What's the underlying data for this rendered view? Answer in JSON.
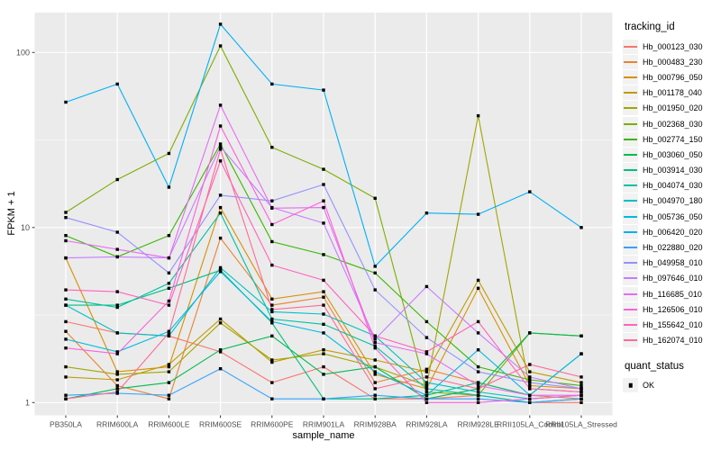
{
  "chart_data": {
    "type": "line",
    "title": "",
    "xlabel": "sample_name",
    "ylabel": "FPKM + 1",
    "yscale": "log10",
    "yticks": [
      1,
      10,
      100
    ],
    "ylim": [
      0.85,
      169
    ],
    "grid": true,
    "legend_position": "right",
    "legend_title": "tracking_id",
    "point_marker": "filled-black-square",
    "categories": [
      "PB350LA",
      "RRIM600LA",
      "RRIM600LE",
      "RRIM600SE",
      "RRIM600PE",
      "RRIM901LA",
      "RRIM928BA",
      "RRIM928LA",
      "RRIM928LE",
      "RRII105LA_Control",
      "RRII105LA_Stressed"
    ],
    "series": [
      {
        "name": "Hb_000123_030",
        "color": "#F8766D",
        "values": [
          2.9,
          2.5,
          2.4,
          1.95,
          1.3,
          1.6,
          1.05,
          1.05,
          1.1,
          1.0,
          1.0
        ]
      },
      {
        "name": "Hb_000483_230",
        "color": "#EA8331",
        "values": [
          2.55,
          1.25,
          1.05,
          8.7,
          3.6,
          4.0,
          1.3,
          1.55,
          1.3,
          1.1,
          1.05
        ]
      },
      {
        "name": "Hb_000796_050",
        "color": "#D89000",
        "values": [
          6.7,
          1.5,
          1.6,
          13.0,
          3.9,
          4.3,
          1.45,
          1.2,
          4.5,
          1.25,
          1.2
        ]
      },
      {
        "name": "Hb_001178_040",
        "color": "#C09B00",
        "values": [
          1.4,
          1.35,
          1.65,
          3.0,
          1.7,
          2.0,
          1.75,
          1.5,
          5.0,
          1.5,
          1.3
        ]
      },
      {
        "name": "Hb_001950_020",
        "color": "#A3A500",
        "values": [
          1.6,
          1.45,
          1.5,
          2.85,
          1.75,
          1.9,
          1.6,
          1.25,
          43.5,
          1.2,
          1.15
        ]
      },
      {
        "name": "Hb_002368_030",
        "color": "#7CAE00",
        "values": [
          12.2,
          18.8,
          26.5,
          109,
          28.7,
          21.5,
          14.7,
          1.15,
          1.1,
          2.5,
          2.4
        ]
      },
      {
        "name": "Hb_002774_150",
        "color": "#39B600",
        "values": [
          9.0,
          6.8,
          9.0,
          30,
          8.3,
          7.0,
          5.5,
          2.9,
          1.6,
          1.35,
          1.25
        ]
      },
      {
        "name": "Hb_003060_050",
        "color": "#00BB4E",
        "values": [
          1.05,
          1.2,
          1.3,
          2.0,
          2.4,
          1.45,
          1.6,
          1.05,
          1.2,
          2.5,
          2.4
        ]
      },
      {
        "name": "Hb_003914_030",
        "color": "#00C07F",
        "values": [
          3.6,
          3.6,
          4.5,
          5.7,
          2.85,
          1.05,
          1.05,
          1.1,
          1.3,
          1.1,
          1.9
        ]
      },
      {
        "name": "Hb_004074_030",
        "color": "#00C1A3",
        "values": [
          3.9,
          3.5,
          4.8,
          12.1,
          3.0,
          2.8,
          2.1,
          1.2,
          1.1,
          1.0,
          1.05
        ]
      },
      {
        "name": "Hb_004970_180",
        "color": "#00BFC4",
        "values": [
          3.6,
          2.5,
          2.4,
          5.9,
          3.3,
          3.2,
          2.4,
          1.3,
          1.15,
          1.05,
          1.1
        ]
      },
      {
        "name": "Hb_005736_050",
        "color": "#00BAE0",
        "values": [
          2.3,
          1.95,
          2.55,
          5.6,
          2.9,
          2.5,
          1.5,
          1.1,
          2.0,
          1.1,
          1.9
        ]
      },
      {
        "name": "Hb_006420_020",
        "color": "#00B0F6",
        "values": [
          52,
          66,
          17,
          145,
          66,
          61,
          6.0,
          12.1,
          11.9,
          16,
          10
        ]
      },
      {
        "name": "Hb_022880_020",
        "color": "#35A2FF",
        "values": [
          1.1,
          1.13,
          1.1,
          1.56,
          1.05,
          1.05,
          1.1,
          1.05,
          1.05,
          1.0,
          1.05
        ]
      },
      {
        "name": "Hb_049958_010",
        "color": "#9590FF",
        "values": [
          11.4,
          9.4,
          5.5,
          15.3,
          14.2,
          17.6,
          4.4,
          2.35,
          1.5,
          1.3,
          1.2
        ]
      },
      {
        "name": "Hb_097646_010",
        "color": "#C77CFF",
        "values": [
          6.7,
          6.8,
          6.7,
          29,
          13,
          10.6,
          2.3,
          4.6,
          2.5,
          1.4,
          1.2
        ]
      },
      {
        "name": "Hb_116685_010",
        "color": "#E76BF3",
        "values": [
          8.4,
          7.5,
          6.7,
          50,
          12.9,
          13,
          2.2,
          1.9,
          1.25,
          1.1,
          1.1
        ]
      },
      {
        "name": "Hb_126506_010",
        "color": "#FA62DB",
        "values": [
          2.05,
          1.9,
          3.8,
          38,
          10.4,
          14.2,
          2.05,
          1.0,
          1.0,
          1.05,
          1.1
        ]
      },
      {
        "name": "Hb_155642_010",
        "color": "#FF62BC",
        "values": [
          4.4,
          4.3,
          3.6,
          24,
          6.1,
          5.0,
          2.4,
          1.95,
          2.9,
          1.2,
          1.15
        ]
      },
      {
        "name": "Hb_162074_010",
        "color": "#FF6A98",
        "values": [
          1.05,
          1.15,
          2.5,
          28,
          3.4,
          3.6,
          1.2,
          1.4,
          1.2,
          1.65,
          1.4
        ]
      }
    ]
  },
  "legend": {
    "tracking_title": "tracking_id",
    "quant_title": "quant_status",
    "quant_items": [
      {
        "label": "OK",
        "marker": "black-square"
      }
    ]
  },
  "theme": {
    "panel_bg": "#EBEBEB",
    "grid_major": "#FFFFFF",
    "grid_minor": "#F5F5F5",
    "tick_color": "#333333",
    "axis_text_color": "#4D4D4D",
    "key_bg": "#F2F2F2",
    "point_color": "#000000"
  }
}
